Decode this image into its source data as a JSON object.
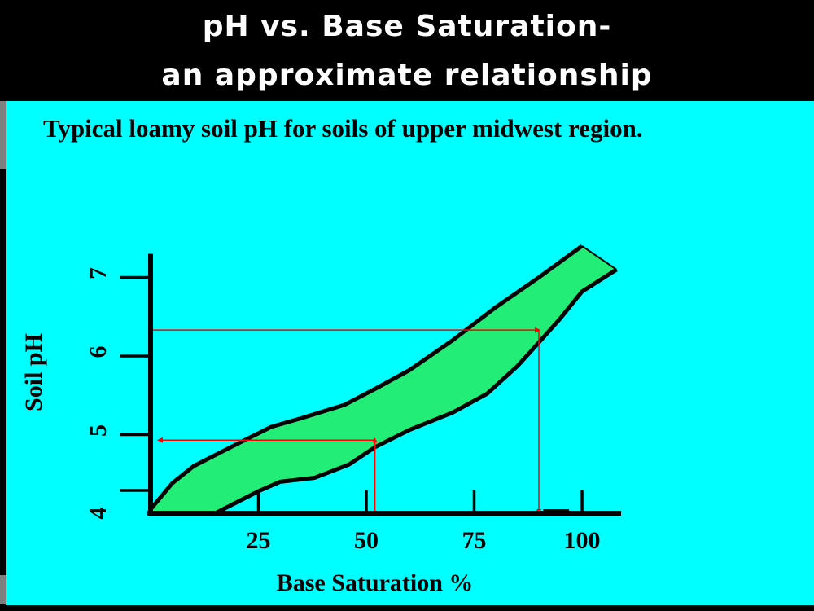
{
  "slide": {
    "title_line1": "pH vs. Base Saturation-",
    "title_line2": "an approximate relationship"
  },
  "colors": {
    "title_background": "#000000",
    "title_text": "#ffffff",
    "panel_background": "#00ffff",
    "band_fill": "#22ee77",
    "guide_lines": "#ff0000",
    "axis": "#000000"
  },
  "chart_data": {
    "type": "area",
    "title": "Typical loamy soil pH for soils of upper midwest region.",
    "xlabel": "Base Saturation %",
    "ylabel": "Soil pH",
    "xlim": [
      0,
      110
    ],
    "ylim": [
      3.95,
      7.3
    ],
    "x_ticks": [
      25,
      50,
      75,
      100
    ],
    "y_ticks": [
      4,
      5,
      6,
      7
    ],
    "grid": false,
    "legend": "none",
    "series": [
      {
        "role": "upper_bound",
        "x": [
          0,
          5,
          10,
          20,
          28,
          35,
          45,
          52,
          60,
          70,
          80,
          90,
          100
        ],
        "y": [
          4.05,
          4.38,
          4.6,
          4.88,
          5.1,
          5.21,
          5.38,
          5.58,
          5.82,
          6.2,
          6.62,
          7.0,
          7.4
        ]
      },
      {
        "role": "lower_bound",
        "x": [
          15,
          25,
          30,
          38,
          46,
          52,
          60,
          70,
          78,
          85,
          88,
          95,
          100,
          108
        ],
        "y": [
          4.0,
          4.28,
          4.4,
          4.45,
          4.62,
          4.84,
          5.06,
          5.28,
          5.52,
          5.87,
          6.05,
          6.48,
          6.82,
          7.1
        ]
      }
    ],
    "annotations": [
      {
        "type": "guide",
        "x": 52,
        "y": 4.93,
        "description": "vertical line from x-axis at 52% up to the band, then left to the pH axis"
      },
      {
        "type": "guide",
        "x": 90,
        "y": 6.33,
        "description": "horizontal line from the pH axis at 6.33 right to the band, then down to the x-axis at 90%"
      }
    ]
  }
}
